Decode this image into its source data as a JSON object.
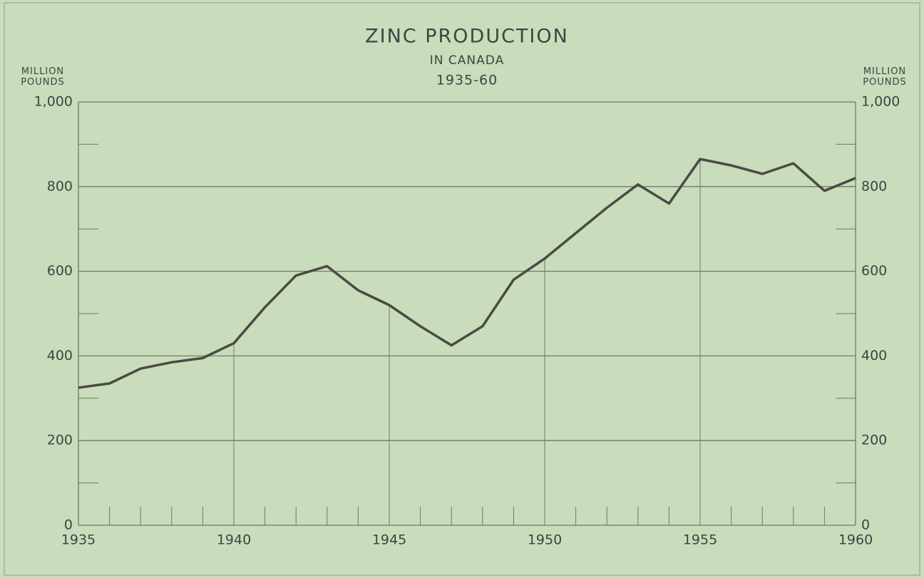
{
  "chart_data": {
    "type": "line",
    "title": "ZINC PRODUCTION",
    "subtitle": "IN CANADA",
    "period": "1935-60",
    "y_label": "MILLION POUNDS",
    "y2_label": "MILLION POUNDS",
    "x": [
      1935,
      1936,
      1937,
      1938,
      1939,
      1940,
      1941,
      1942,
      1943,
      1944,
      1945,
      1946,
      1947,
      1948,
      1949,
      1950,
      1951,
      1952,
      1953,
      1954,
      1955,
      1956,
      1957,
      1958,
      1959,
      1960
    ],
    "values": [
      325,
      335,
      370,
      385,
      395,
      430,
      515,
      590,
      612,
      555,
      520,
      470,
      425,
      470,
      580,
      630,
      690,
      750,
      805,
      760,
      865,
      850,
      830,
      855,
      790,
      820
    ],
    "color": "#4a4a44",
    "xlim": [
      1935,
      1960
    ],
    "xticks": [
      1935,
      1940,
      1945,
      1950,
      1955,
      1960
    ],
    "ylim": [
      0,
      1000
    ],
    "yticks": [
      0,
      200,
      400,
      600,
      {
        "value": 800,
        "label": "800"
      },
      {
        "value": 1000,
        "label": "1,000"
      }
    ],
    "yticks_minor": [
      100,
      300,
      500,
      700,
      900
    ],
    "y2lim": [
      0,
      1000
    ],
    "y2ticks": [
      0,
      200,
      400,
      600,
      800,
      {
        "value": 1000,
        "label": "1,000"
      }
    ],
    "grid": true
  }
}
